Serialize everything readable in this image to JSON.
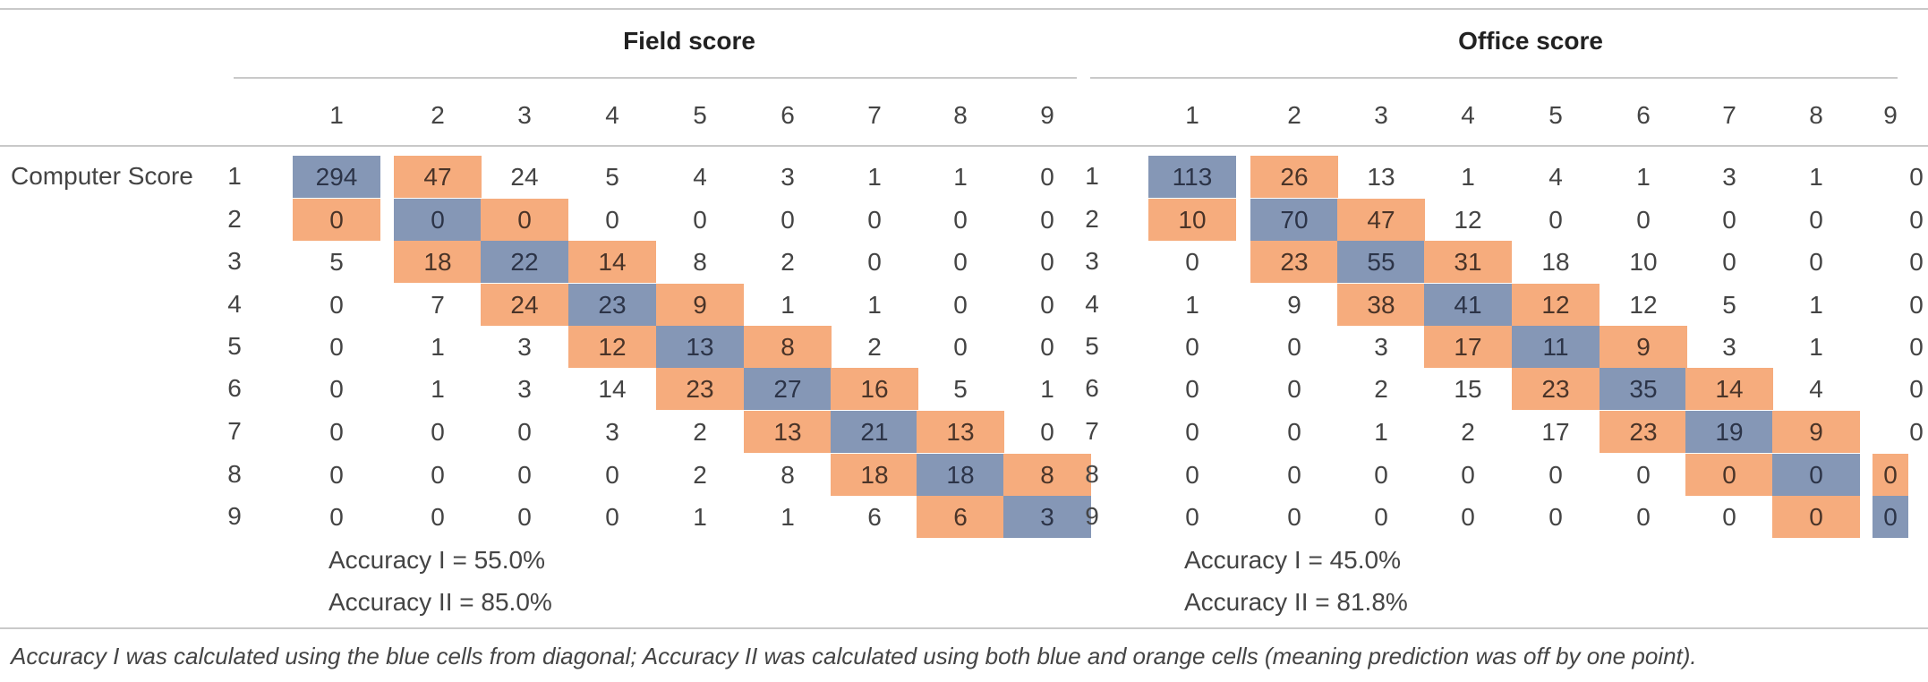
{
  "row_label": "Computer Score",
  "columns": [
    "1",
    "2",
    "3",
    "4",
    "5",
    "6",
    "7",
    "8",
    "9"
  ],
  "rows": [
    "1",
    "2",
    "3",
    "4",
    "5",
    "6",
    "7",
    "8",
    "9"
  ],
  "colors": {
    "blue": "#8597b6",
    "orange": "#f6ac7d"
  },
  "panels": [
    {
      "title": "Field score",
      "matrix": [
        [
          294,
          47,
          24,
          5,
          4,
          3,
          1,
          1,
          0
        ],
        [
          0,
          0,
          0,
          0,
          0,
          0,
          0,
          0,
          0
        ],
        [
          5,
          18,
          22,
          14,
          8,
          2,
          0,
          0,
          0
        ],
        [
          0,
          7,
          24,
          23,
          9,
          1,
          1,
          0,
          0
        ],
        [
          0,
          1,
          3,
          12,
          13,
          8,
          2,
          0,
          0
        ],
        [
          0,
          1,
          3,
          14,
          23,
          27,
          16,
          5,
          1
        ],
        [
          0,
          0,
          0,
          3,
          2,
          13,
          21,
          13,
          0
        ],
        [
          0,
          0,
          0,
          0,
          2,
          8,
          18,
          18,
          8
        ],
        [
          0,
          0,
          0,
          0,
          1,
          1,
          6,
          6,
          3
        ]
      ],
      "accuracy_1": "Accuracy I = 55.0%",
      "accuracy_2": "Accuracy II = 85.0%"
    },
    {
      "title": "Office score",
      "matrix": [
        [
          113,
          26,
          13,
          1,
          4,
          1,
          3,
          1,
          0
        ],
        [
          10,
          70,
          47,
          12,
          0,
          0,
          0,
          0,
          0
        ],
        [
          0,
          23,
          55,
          31,
          18,
          10,
          0,
          0,
          0
        ],
        [
          1,
          9,
          38,
          41,
          12,
          12,
          5,
          1,
          0
        ],
        [
          0,
          0,
          3,
          17,
          11,
          9,
          3,
          1,
          0
        ],
        [
          0,
          0,
          2,
          15,
          23,
          35,
          14,
          4,
          0
        ],
        [
          0,
          0,
          1,
          2,
          17,
          23,
          19,
          9,
          0
        ],
        [
          0,
          0,
          0,
          0,
          0,
          0,
          0,
          0,
          0
        ],
        [
          0,
          0,
          0,
          0,
          0,
          0,
          0,
          0,
          0
        ]
      ],
      "accuracy_1": "Accuracy I = 45.0%",
      "accuracy_2": "Accuracy II = 81.8%"
    }
  ],
  "footnote": "Accuracy I was calculated using the blue cells from diagonal; Accuracy II was calculated using both blue and orange cells (meaning prediction was off by one point)."
}
